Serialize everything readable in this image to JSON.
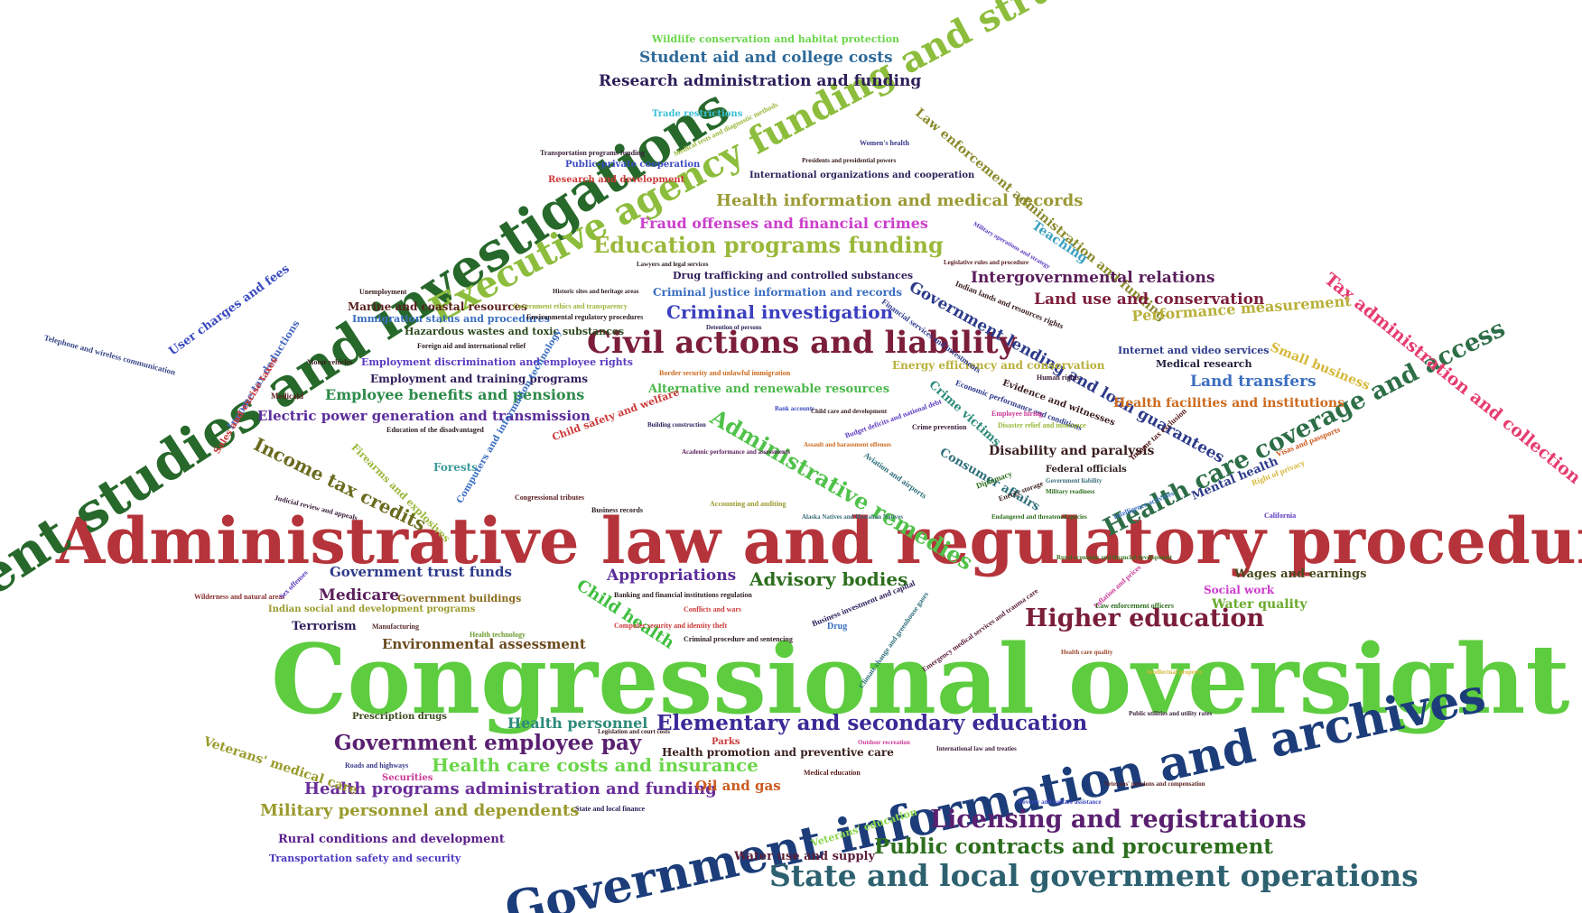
{
  "words": [
    {
      "text": "Congressional oversight",
      "color": "#5dcc3f"
    },
    {
      "text": "Administrative law and regulatory procedures",
      "color": "#b5333a"
    },
    {
      "text": "Government information and archives",
      "color": "#1c3d7a"
    },
    {
      "text": "Government studies and investigations",
      "color": "#27682b"
    },
    {
      "text": "Executive agency funding and structure",
      "color": "#8dbd3c"
    },
    {
      "text": "Civil actions and liability",
      "color": "#7b1e3a"
    },
    {
      "text": "State and local government operations",
      "color": "#2d6170"
    },
    {
      "text": "Health care coverage and access",
      "color": "#2d6e47"
    },
    {
      "text": "Elementary and secondary education",
      "color": "#3c2896"
    },
    {
      "text": "Licensing and registrations",
      "color": "#5a2070"
    },
    {
      "text": "Higher education",
      "color": "#7b1e3a"
    },
    {
      "text": "Public contracts and procurement",
      "color": "#2d6e1e"
    },
    {
      "text": "Education programs funding",
      "color": "#9ab83a"
    },
    {
      "text": "Government employee pay",
      "color": "#5a2070"
    },
    {
      "text": "Health care costs and insurance",
      "color": "#6bd64a"
    },
    {
      "text": "Administrative remedies",
      "color": "#50c24a"
    },
    {
      "text": "Criminal investigation",
      "color": "#3b3fbf"
    },
    {
      "text": "Tax administration and collection",
      "color": "#e63c6e"
    },
    {
      "text": "Health information and medical records",
      "color": "#9b9a36"
    },
    {
      "text": "Government lending and loan guarantees",
      "color": "#2d3a8a"
    },
    {
      "text": "Law enforcement administration and funding",
      "color": "#8a8a2d"
    },
    {
      "text": "Health programs administration and funding",
      "color": "#6a2d9a"
    },
    {
      "text": "Military personnel and dependents",
      "color": "#9a9a2d"
    },
    {
      "text": "Advisory bodies",
      "color": "#2d6e1e"
    },
    {
      "text": "Income tax credits",
      "color": "#6a6a1e"
    },
    {
      "text": "Intergovernmental relations",
      "color": "#5a1e5a"
    },
    {
      "text": "Land use and conservation",
      "color": "#7b1e3a"
    },
    {
      "text": "Performance measurement",
      "color": "#b8b03a"
    },
    {
      "text": "Student aid and college costs",
      "color": "#2d6a9a"
    },
    {
      "text": "Research administration and funding",
      "color": "#2d1e5a"
    },
    {
      "text": "Fraud offenses and financial crimes",
      "color": "#cc3fcc"
    },
    {
      "text": "Appropriations",
      "color": "#5a2d9a"
    },
    {
      "text": "Medicare",
      "color": "#5a1e5a"
    },
    {
      "text": "Government trust funds",
      "color": "#2d3a8a"
    },
    {
      "text": "Child health",
      "color": "#40c040"
    },
    {
      "text": "Land transfers",
      "color": "#3b6ec0"
    },
    {
      "text": "Health facilities and institutions",
      "color": "#cc6a1e"
    },
    {
      "text": "Disability and paralysis",
      "color": "#3a1e1e"
    },
    {
      "text": "Employee benefits and pensions",
      "color": "#2d8a4a"
    },
    {
      "text": "Electric power generation and transmission",
      "color": "#5a2d9a"
    },
    {
      "text": "Environmental assessment",
      "color": "#6a4a1e"
    },
    {
      "text": "Health personnel",
      "color": "#2d8a7a"
    },
    {
      "text": "Oil and gas",
      "color": "#cc5a1e"
    },
    {
      "text": "Wages and earnings",
      "color": "#4a4a1e"
    },
    {
      "text": "Water quality",
      "color": "#6aaa2d"
    },
    {
      "text": "Veterans' medical care",
      "color": "#9a9a2d"
    },
    {
      "text": "Rural conditions and development",
      "color": "#5a1e8a"
    },
    {
      "text": "Transportation safety and security",
      "color": "#4a3ac0"
    },
    {
      "text": "Water use and supply",
      "color": "#5a1e3a"
    },
    {
      "text": "Alternative and renewable resources",
      "color": "#4ab84a"
    },
    {
      "text": "Energy efficiency and conservation",
      "color": "#b8b03a"
    },
    {
      "text": "Small business",
      "color": "#d6b83a"
    },
    {
      "text": "Internet and video services",
      "color": "#2d3a8a"
    },
    {
      "text": "Medical research",
      "color": "#1e1e3a"
    },
    {
      "text": "Mental health",
      "color": "#2d3a8a"
    },
    {
      "text": "Teaching",
      "color": "#3aa0c0"
    },
    {
      "text": "User charges and fees",
      "color": "#3a4ac0"
    },
    {
      "text": "Telephone and wireless communication",
      "color": "#3a4a8a"
    },
    {
      "text": "Wildlife conservation and habitat protection",
      "color": "#6ad64a"
    },
    {
      "text": "Trade restrictions",
      "color": "#3ac0d6"
    },
    {
      "text": "Employment and training programs",
      "color": "#2d1e5a"
    },
    {
      "text": "Employment discrimination and employee rights",
      "color": "#5a3ac0"
    },
    {
      "text": "Hazardous wastes and toxic substances",
      "color": "#2d4a1e"
    },
    {
      "text": "Marine and coastal resources",
      "color": "#5a1e1e"
    },
    {
      "text": "Immigration status and procedures",
      "color": "#3a6ec0"
    },
    {
      "text": "Drug trafficking and controlled substances",
      "color": "#2d1e5a"
    },
    {
      "text": "Criminal justice information and records",
      "color": "#3a6ec0"
    },
    {
      "text": "Crime victims",
      "color": "#2d8a7a"
    },
    {
      "text": "Consumer affairs",
      "color": "#2d6e7a"
    },
    {
      "text": "Income tax deductions",
      "color": "#4a6ac0"
    },
    {
      "text": "Sales and excise taxes",
      "color": "#cc3a3a"
    },
    {
      "text": "Firearms and explosives",
      "color": "#9ab83a"
    },
    {
      "text": "Forests",
      "color": "#3a9a9a"
    },
    {
      "text": "Computers and information technology",
      "color": "#3a6ec0"
    },
    {
      "text": "Child safety and welfare",
      "color": "#cc3a3a"
    },
    {
      "text": "Social work",
      "color": "#cc3acc"
    },
    {
      "text": "Securities",
      "color": "#cc3a9a"
    },
    {
      "text": "Parks",
      "color": "#cc3a3a"
    },
    {
      "text": "Terrorism",
      "color": "#2d1e5a"
    },
    {
      "text": "Government buildings",
      "color": "#8a6a1e"
    },
    {
      "text": "Indian social and development programs",
      "color": "#9a9a2d"
    },
    {
      "text": "Prescription drugs",
      "color": "#3a4a1e"
    },
    {
      "text": "Veterans' education",
      "color": "#8ad64a"
    },
    {
      "text": "Health promotion and preventive care",
      "color": "#3a1e1e"
    },
    {
      "text": "Roads and highways",
      "color": "#3a3a8a"
    },
    {
      "text": "Public-private cooperation",
      "color": "#3a4ac0"
    },
    {
      "text": "Research and development",
      "color": "#cc3a3a"
    },
    {
      "text": "International organizations and cooperation",
      "color": "#2d1e5a"
    },
    {
      "text": "Medical tests and diagnostic methods",
      "color": "#9ab83a"
    },
    {
      "text": "Women's health",
      "color": "#3a3a8a"
    },
    {
      "text": "Transportation programs funding",
      "color": "#3a1e3a"
    },
    {
      "text": "Financial services and investments",
      "color": "#2d3a8a"
    },
    {
      "text": "Indian lands and resources rights",
      "color": "#3a1e1e"
    },
    {
      "text": "Economic performance and conditions",
      "color": "#2d3a8a"
    },
    {
      "text": "Evidence and witnesses",
      "color": "#3a1e1e"
    },
    {
      "text": "Human rights",
      "color": "#3a1e3a"
    },
    {
      "text": "Income tax exclusion",
      "color": "#5a1e1e"
    },
    {
      "text": "Federal officials",
      "color": "#2d1e1e"
    },
    {
      "text": "Diplomacy",
      "color": "#2d6e1e"
    },
    {
      "text": "Aviation and airports",
      "color": "#2d6e7a"
    },
    {
      "text": "Budget deficits and national debt",
      "color": "#5a3ac0"
    },
    {
      "text": "Business investment and capital",
      "color": "#2d1e5a"
    },
    {
      "text": "Climate change and greenhouse gases",
      "color": "#2d6e7a"
    },
    {
      "text": "Emergency medical services and trauma care",
      "color": "#5a1e3a"
    },
    {
      "text": "Inflation and prices",
      "color": "#cc3a9a"
    },
    {
      "text": "Banking and financial institutions regulation",
      "color": "#2d1e1e"
    },
    {
      "text": "Computer security and identity theft",
      "color": "#cc3a3a"
    },
    {
      "text": "Criminal procedure and sentencing",
      "color": "#2d1e1e"
    },
    {
      "text": "Drug",
      "color": "#3a6ec0"
    },
    {
      "text": "Conflicts and wars",
      "color": "#cc3a3a"
    },
    {
      "text": "Accounting and auditing",
      "color": "#9a9a2d"
    },
    {
      "text": "Business records",
      "color": "#2d1e1e"
    },
    {
      "text": "Judicial review and appeals",
      "color": "#3a1e3a"
    },
    {
      "text": "Wilderness and natural areas",
      "color": "#8a2d2d"
    },
    {
      "text": "Sex offenses",
      "color": "#5a3ac0"
    },
    {
      "text": "Medicaid",
      "color": "#5a1e1e"
    },
    {
      "text": "Unemployment",
      "color": "#3a1e1e"
    },
    {
      "text": "Foreign aid and international relief",
      "color": "#2d1e1e"
    },
    {
      "text": "Border security and unlawful immigration",
      "color": "#cc6a1e"
    },
    {
      "text": "Health technology",
      "color": "#6a9a2d"
    },
    {
      "text": "Manufacturing",
      "color": "#5a2d2d"
    },
    {
      "text": "Intelligence activities",
      "color": "#3a6ec0"
    },
    {
      "text": "Visas and passports",
      "color": "#cc5a1e"
    },
    {
      "text": "Congressional tributes",
      "color": "#5a1e1e"
    },
    {
      "text": "Law enforcement officers",
      "color": "#2d6e1e"
    },
    {
      "text": "Poverty and welfare assistance",
      "color": "#3a4ac0"
    },
    {
      "text": "State and local finance",
      "color": "#2d1e5a"
    },
    {
      "text": "Medical education",
      "color": "#5a1e1e"
    },
    {
      "text": "California",
      "color": "#5a3ac0"
    },
    {
      "text": "Government ethics and transparency",
      "color": "#9ab83a"
    },
    {
      "text": "Environmental regulatory procedures",
      "color": "#2d1e1e"
    },
    {
      "text": "Education of the disadvantaged",
      "color": "#2d1e1e"
    },
    {
      "text": "Energy storage",
      "color": "#3a1e1e"
    },
    {
      "text": "Right of privacy",
      "color": "#d6b83a"
    },
    {
      "text": "Employee hiring",
      "color": "#cc3a9a"
    },
    {
      "text": "Crime prevention",
      "color": "#3a1e3a"
    },
    {
      "text": "Motor vehicles",
      "color": "#3a1e1e"
    },
    {
      "text": "Military operations and strategy",
      "color": "#5a3ac0"
    },
    {
      "text": "Legislative rules and procedure",
      "color": "#5a1e1e"
    },
    {
      "text": "Presidents and presidential powers",
      "color": "#3a1e1e"
    },
    {
      "text": "Lawyers and legal services",
      "color": "#2d1e1e"
    },
    {
      "text": "Historic sites and heritage areas",
      "color": "#2d1e1e"
    },
    {
      "text": "Detention of persons",
      "color": "#2d1e5a"
    },
    {
      "text": "Bank accounts",
      "color": "#3a4ac0"
    },
    {
      "text": "Child care and development",
      "color": "#3a1e1e"
    },
    {
      "text": "Building construction",
      "color": "#2d1e5a"
    },
    {
      "text": "Disaster relief and insurance",
      "color": "#9ab83a"
    },
    {
      "text": "Academic performance and assessments",
      "color": "#5a1e5a"
    },
    {
      "text": "Alaska Natives and Hawaiian Natives",
      "color": "#3a6e7a"
    },
    {
      "text": "Assault and harassment offenses",
      "color": "#cc6a1e"
    },
    {
      "text": "Endangered and threatened species",
      "color": "#2d6e1e"
    },
    {
      "text": "Government liability",
      "color": "#3a6e7a"
    },
    {
      "text": "Rural economic and financial development",
      "color": "#3a6e1e"
    },
    {
      "text": "Military readiness",
      "color": "#2d6e1e"
    },
    {
      "text": "Outdoor recreation",
      "color": "#cc3a9a"
    },
    {
      "text": "International law and treaties",
      "color": "#3a1e3a"
    },
    {
      "text": "Public utilities and utility rates",
      "color": "#3a1e3a"
    },
    {
      "text": "Veterans' pensions and compensation",
      "color": "#5a1e1e"
    },
    {
      "text": "Intellectual property",
      "color": "#d6b83a"
    },
    {
      "text": "Legislation and court costs",
      "color": "#3a1e1e"
    },
    {
      "text": "Health care quality",
      "color": "#9a4a2d"
    }
  ]
}
